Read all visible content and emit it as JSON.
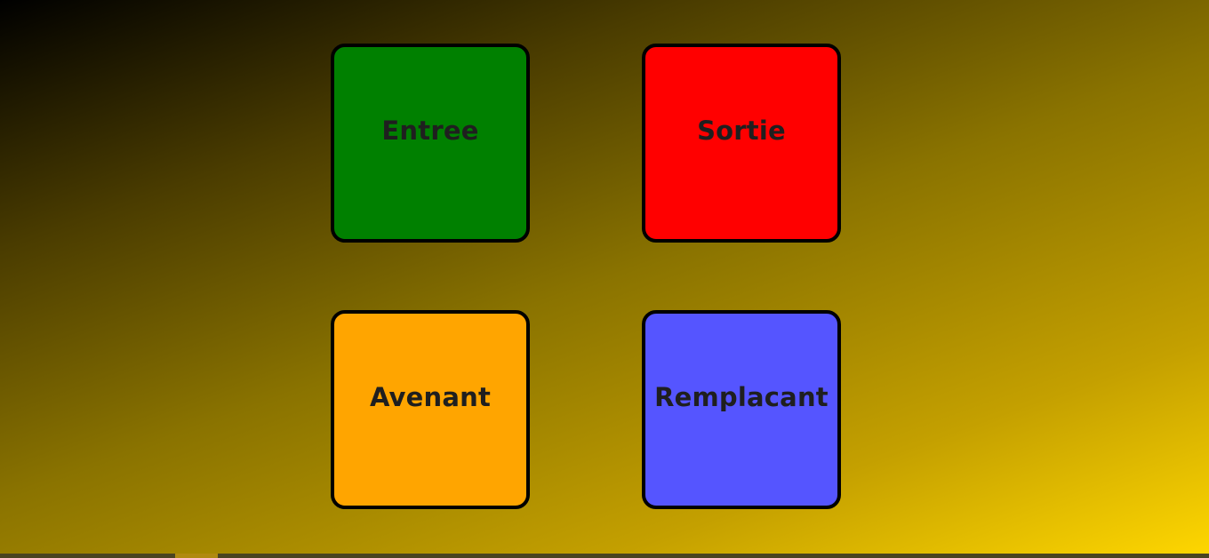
{
  "tiles": [
    {
      "label": "Entree",
      "color": "#008000"
    },
    {
      "label": "Sortie",
      "color": "#ff0000"
    },
    {
      "label": "Avenant",
      "color": "#ffa500"
    },
    {
      "label": "Remplacant",
      "color": "#5555ff"
    }
  ],
  "theme": {
    "gradient_start": "#000000",
    "gradient_end": "#ffd700",
    "tile_border": "#000000",
    "label_color": "#1f1f1f"
  }
}
